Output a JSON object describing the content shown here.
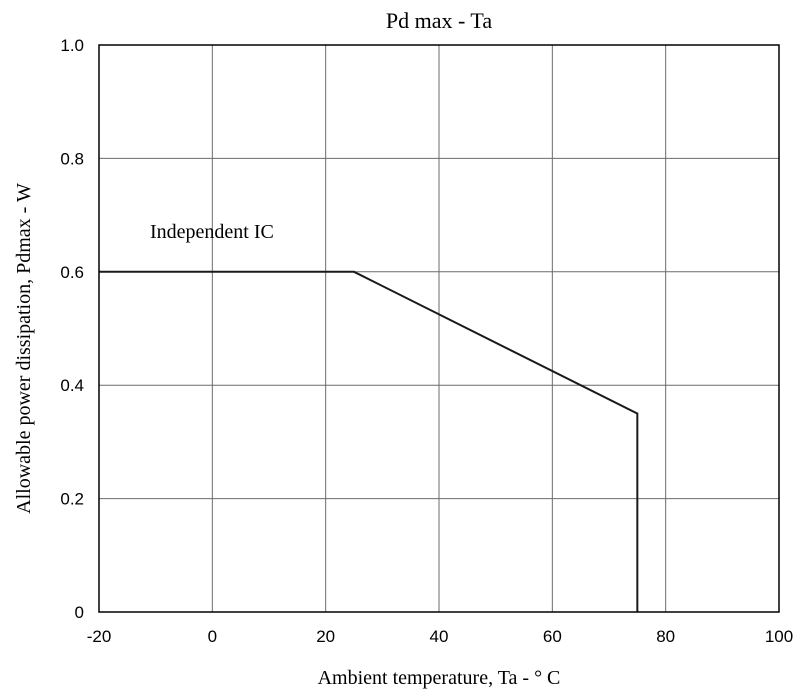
{
  "chart_data": {
    "type": "line",
    "title": "Pd max - Ta",
    "xlabel": "Ambient temperature, Ta - ° C",
    "ylabel": "Allowable power dissipation, Pdmax - W",
    "xlim": [
      -20,
      100
    ],
    "ylim": [
      0,
      1.0
    ],
    "x_ticks": [
      -20,
      0,
      20,
      40,
      60,
      80,
      100
    ],
    "x_tick_labels": [
      "-20",
      "0",
      "20",
      "40",
      "60",
      "80",
      "100"
    ],
    "y_ticks": [
      0,
      0.2,
      0.4,
      0.6,
      0.8,
      1.0
    ],
    "y_tick_labels": [
      "0",
      "0.2",
      "0.4",
      "0.6",
      "0.8",
      "1.0"
    ],
    "grid": true,
    "series": [
      {
        "x": [
          -20,
          25,
          75,
          75
        ],
        "y": [
          0.6,
          0.6,
          0.35,
          0
        ]
      }
    ],
    "annotations": [
      {
        "text": "Independent IC",
        "x": -11,
        "y": 0.66
      }
    ]
  },
  "colors": {
    "line": "#1a1a1a",
    "grid": "#6b6b6b",
    "frame": "#000000",
    "background": "#ffffff"
  }
}
